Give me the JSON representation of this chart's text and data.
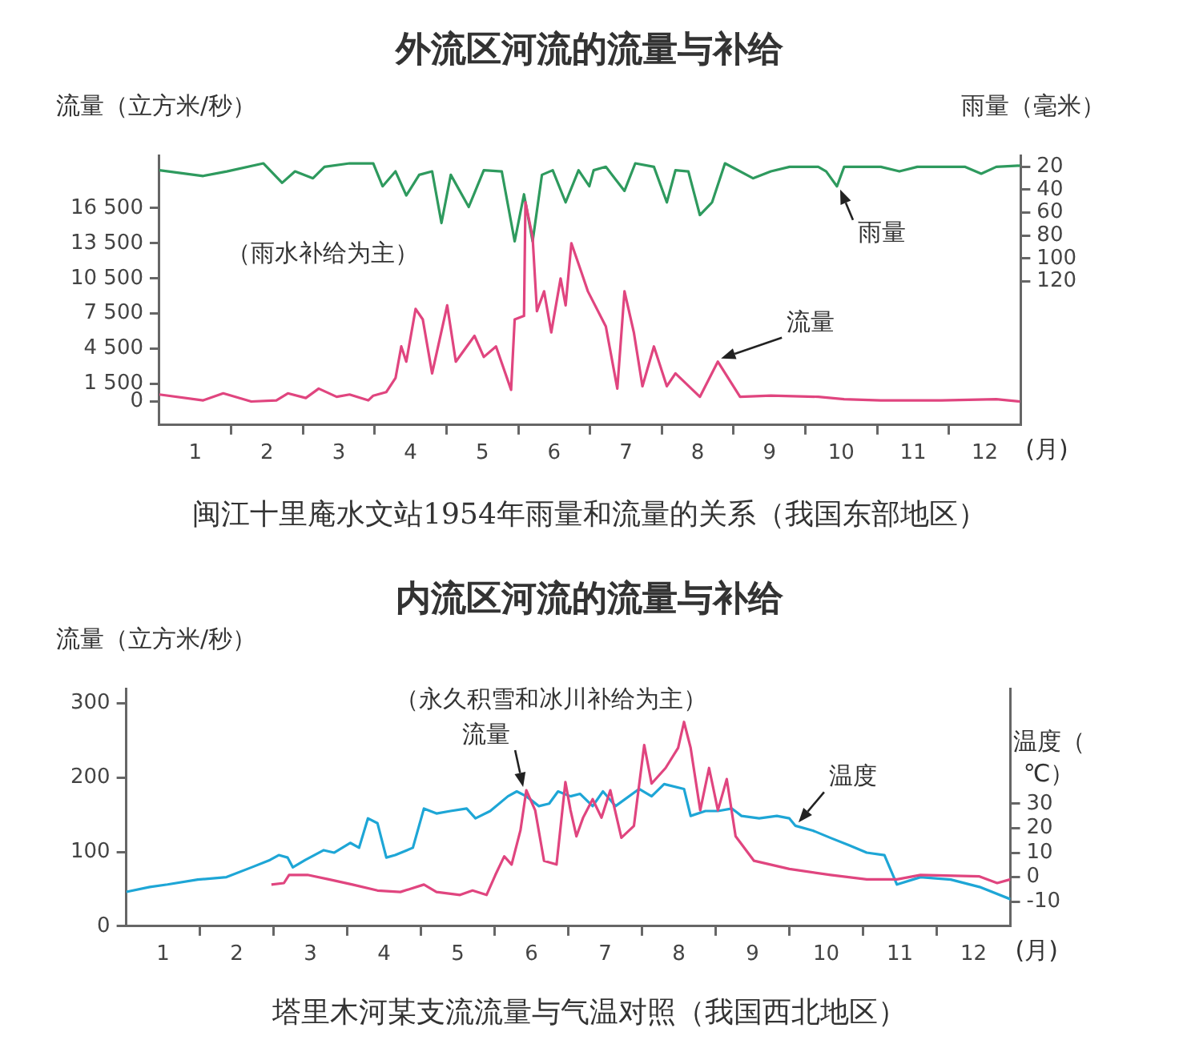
{
  "chart_data": [
    {
      "type": "line",
      "title": "外流区河流的流量与补给",
      "ylabel": "流量（立方米/秒）",
      "y2label": "雨量（毫米）",
      "xlabel": "(月)",
      "marker": "none",
      "annotations": [
        "（雨水补给为主）",
        "闽江十里庵水文站1954年雨量和流量的关系（我国东部地区）"
      ],
      "xlim": [
        0,
        12
      ],
      "xticks": [
        {
          "value": 0.5,
          "label": "1"
        },
        {
          "value": 1,
          "label": null
        },
        {
          "value": 1.5,
          "label": "2"
        },
        {
          "value": 2,
          "label": null
        },
        {
          "value": 2.5,
          "label": "3"
        },
        {
          "value": 3,
          "label": null
        },
        {
          "value": 3.5,
          "label": "4"
        },
        {
          "value": 4,
          "label": null
        },
        {
          "value": 4.5,
          "label": "5"
        },
        {
          "value": 5,
          "label": null
        },
        {
          "value": 5.5,
          "label": "6"
        },
        {
          "value": 6,
          "label": null
        },
        {
          "value": 6.5,
          "label": "7"
        },
        {
          "value": 7,
          "label": null
        },
        {
          "value": 7.5,
          "label": "8"
        },
        {
          "value": 8,
          "label": null
        },
        {
          "value": 8.5,
          "label": "9"
        },
        {
          "value": 9,
          "label": null
        },
        {
          "value": 9.5,
          "label": "10"
        },
        {
          "value": 10,
          "label": null
        },
        {
          "value": 10.5,
          "label": "11"
        },
        {
          "value": 11,
          "label": null
        },
        {
          "value": 11.5,
          "label": "12"
        }
      ],
      "ylim": [
        -2000,
        21000
      ],
      "yticks": [
        0,
        {
          "value": 1500,
          "label": "1 500"
        },
        {
          "value": 4500,
          "label": "4 500"
        },
        {
          "value": 7500,
          "label": "7 500"
        },
        {
          "value": 10500,
          "label": "10 500"
        },
        {
          "value": 13500,
          "label": "13 500"
        },
        {
          "value": 16500,
          "label": "16 500"
        }
      ],
      "y2lim": [
        245,
        10
      ],
      "y2ticks": [
        20,
        40,
        60,
        80,
        100,
        120
      ],
      "series": [
        {
          "name": "流量",
          "color": "#e0457f",
          "x": [
            0,
            0.61,
            0.89,
            1.28,
            1.63,
            1.79,
            2.04,
            2.22,
            2.47,
            2.65,
            2.91,
            2.98,
            3.16,
            3.29,
            3.37,
            3.44,
            3.57,
            3.67,
            3.8,
            4.01,
            4.13,
            4.39,
            4.52,
            4.69,
            4.9,
            4.95,
            5.08,
            5.1,
            5.2,
            5.26,
            5.36,
            5.46,
            5.59,
            5.66,
            5.74,
            5.87,
            5.97,
            6.22,
            6.38,
            6.48,
            6.61,
            6.73,
            6.89,
            7.07,
            7.19,
            7.53,
            7.78,
            8.09,
            8.52,
            9.18,
            9.54,
            10.05,
            10.89,
            11.66,
            11.99
          ],
          "values": [
            600,
            100,
            700,
            0,
            100,
            700,
            300,
            1100,
            400,
            600,
            100,
            500,
            800,
            2000,
            4700,
            3400,
            7900,
            7000,
            2400,
            8200,
            3400,
            5600,
            3800,
            4700,
            1000,
            7000,
            7300,
            17000,
            14000,
            7700,
            9400,
            5900,
            10500,
            8200,
            13500,
            11200,
            9400,
            6400,
            1100,
            9400,
            5900,
            1300,
            4700,
            1300,
            2400,
            400,
            3400,
            400,
            500,
            400,
            200,
            100,
            100,
            200,
            0
          ]
        },
        {
          "name": "雨量",
          "color": "#2e9a5e",
          "axis": "y2",
          "x": [
            0,
            0.61,
            0.94,
            1.45,
            1.71,
            1.89,
            2.14,
            2.3,
            2.65,
            2.98,
            3.11,
            3.29,
            3.44,
            3.62,
            3.8,
            3.93,
            4.06,
            4.31,
            4.52,
            4.77,
            4.95,
            5.08,
            5.2,
            5.33,
            5.48,
            5.66,
            5.84,
            5.99,
            6.05,
            6.22,
            6.48,
            6.63,
            6.89,
            7.07,
            7.19,
            7.37,
            7.53,
            7.7,
            7.88,
            8.27,
            8.52,
            8.78,
            9.18,
            9.29,
            9.44,
            9.54,
            10.05,
            10.31,
            10.56,
            11.22,
            11.45,
            11.66,
            11.99
          ],
          "values": [
            23,
            28,
            24,
            17,
            34,
            24,
            30,
            20,
            17,
            17,
            37,
            24,
            45,
            27,
            24,
            69,
            27,
            55,
            23,
            24,
            85,
            44,
            85,
            27,
            23,
            51,
            23,
            37,
            23,
            20,
            41,
            17,
            20,
            51,
            23,
            24,
            62,
            51,
            17,
            30,
            24,
            20,
            20,
            24,
            37,
            20,
            20,
            24,
            20,
            20,
            26,
            20,
            19
          ]
        }
      ]
    },
    {
      "type": "line",
      "title": "内流区河流的流量与补给",
      "ylabel": "流量（立方米/秒）",
      "y2label": "温度（℃）",
      "xlabel": "(月)",
      "marker": "none",
      "annotations": [
        "（永久积雪和冰川补给为主）",
        "塔里木河某支流流量与气温对照（我国西北地区）"
      ],
      "xlim": [
        0,
        12
      ],
      "xticks": [
        {
          "value": 0.5,
          "label": "1"
        },
        {
          "value": 1,
          "label": null
        },
        {
          "value": 1.5,
          "label": "2"
        },
        {
          "value": 2,
          "label": null
        },
        {
          "value": 2.5,
          "label": "3"
        },
        {
          "value": 3,
          "label": null
        },
        {
          "value": 3.5,
          "label": "4"
        },
        {
          "value": 4,
          "label": null
        },
        {
          "value": 4.5,
          "label": "5"
        },
        {
          "value": 5,
          "label": null
        },
        {
          "value": 5.5,
          "label": "6"
        },
        {
          "value": 6,
          "label": null
        },
        {
          "value": 6.5,
          "label": "7"
        },
        {
          "value": 7,
          "label": null
        },
        {
          "value": 7.5,
          "label": "8"
        },
        {
          "value": 8,
          "label": null
        },
        {
          "value": 8.5,
          "label": "9"
        },
        {
          "value": 9,
          "label": null
        },
        {
          "value": 9.5,
          "label": "10"
        },
        {
          "value": 10,
          "label": null
        },
        {
          "value": 10.5,
          "label": "11"
        },
        {
          "value": 11,
          "label": null
        },
        {
          "value": 11.5,
          "label": "12"
        }
      ],
      "ylim": [
        0,
        320
      ],
      "yticks": [
        0,
        100,
        200,
        300
      ],
      "y2lim": [
        -20,
        77
      ],
      "y2ticks": [
        -10,
        0,
        10,
        20,
        30
      ],
      "series": [
        {
          "name": "流量",
          "color": "#e0457f",
          "x": [
            1.97,
            2.14,
            2.21,
            2.46,
            2.75,
            3.07,
            3.41,
            3.72,
            4.04,
            4.21,
            4.53,
            4.7,
            4.89,
            5.01,
            5.13,
            5.23,
            5.35,
            5.43,
            5.55,
            5.67,
            5.84,
            5.96,
            6.03,
            6.11,
            6.2,
            6.33,
            6.45,
            6.57,
            6.72,
            6.89,
            7.03,
            7.13,
            7.32,
            7.49,
            7.57,
            7.66,
            7.79,
            7.91,
            8.03,
            8.15,
            8.27,
            8.52,
            9.0,
            9.56,
            10.05,
            10.46,
            10.78,
            11.58,
            11.82,
            12.0
          ],
          "values": [
            56,
            58,
            69,
            69,
            63,
            56,
            48,
            46,
            56,
            46,
            42,
            48,
            42,
            69,
            94,
            83,
            129,
            183,
            156,
            88,
            83,
            194,
            156,
            121,
            146,
            171,
            146,
            183,
            119,
            135,
            244,
            192,
            213,
            240,
            275,
            240,
            156,
            213,
            156,
            198,
            121,
            88,
            77,
            69,
            63,
            63,
            69,
            67,
            58,
            63
          ]
        },
        {
          "name": "温度",
          "color": "#1ea6d6",
          "axis": "y2",
          "x": [
            0,
            0.32,
            0.56,
            0.97,
            1.36,
            1.7,
            1.95,
            2.07,
            2.19,
            2.26,
            2.43,
            2.68,
            2.82,
            3.04,
            3.16,
            3.28,
            3.41,
            3.53,
            3.65,
            3.89,
            4.04,
            4.21,
            4.4,
            4.62,
            4.74,
            4.94,
            5.18,
            5.3,
            5.43,
            5.6,
            5.74,
            5.86,
            6.03,
            6.16,
            6.33,
            6.47,
            6.64,
            6.96,
            7.13,
            7.3,
            7.57,
            7.66,
            7.86,
            8.03,
            8.22,
            8.35,
            8.59,
            8.83,
            9.0,
            9.08,
            9.32,
            9.56,
            9.81,
            10.05,
            10.29,
            10.46,
            10.78,
            11.19,
            11.58,
            12.0
          ],
          "values": [
            -6,
            -4,
            -3,
            -1,
            0,
            4,
            7,
            9,
            8,
            4,
            7,
            11,
            10,
            14,
            12,
            24,
            22,
            8,
            9,
            12,
            28,
            26,
            27,
            28,
            24,
            27,
            33,
            35,
            33,
            29,
            30,
            35,
            33,
            34,
            29,
            35,
            29,
            36,
            33,
            38,
            36,
            25,
            27,
            27,
            28,
            25,
            24,
            25,
            24,
            21,
            19,
            16,
            13,
            10,
            9,
            -3,
            0,
            -1,
            -4,
            -9
          ]
        }
      ]
    }
  ]
}
